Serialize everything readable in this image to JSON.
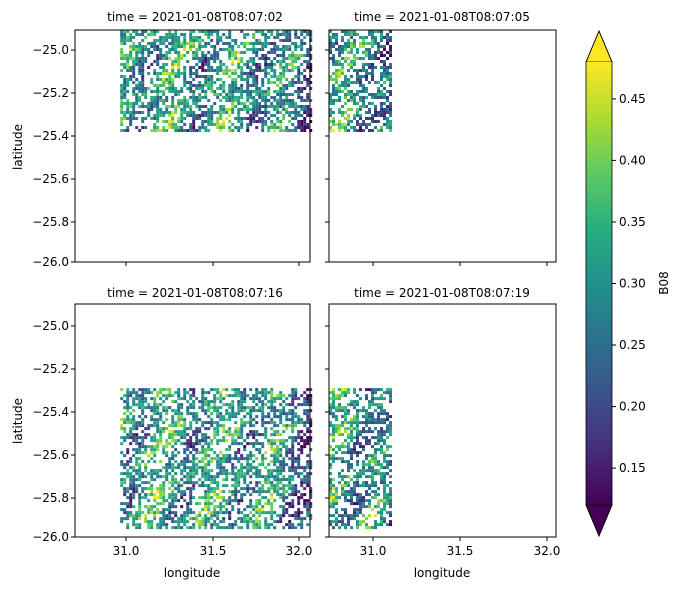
{
  "chart_data": {
    "type": "heatmap",
    "colormap": "viridis",
    "colorbar": {
      "label": "B08",
      "range": [
        0.12,
        0.48
      ],
      "extend": "both",
      "ticks": [
        "0.15",
        "0.20",
        "0.25",
        "0.30",
        "0.35",
        "0.40",
        "0.45"
      ]
    },
    "xlabel": "longitude",
    "ylabel": "latitude",
    "xlim": [
      30.75,
      32.05
    ],
    "ylim": [
      -26.0,
      -24.92
    ],
    "xticks": [
      "31.0",
      "31.5",
      "32.0"
    ],
    "yticks": [
      "−25.0",
      "−25.2",
      "−25.4",
      "−25.6",
      "−25.8",
      "−26.0"
    ],
    "panels": [
      {
        "title": "time = 2021-01-08T08:07:02",
        "extent": {
          "lon": [
            31.0,
            32.05
          ],
          "lat": [
            -25.39,
            -24.92
          ]
        }
      },
      {
        "title": "time = 2021-01-08T08:07:05",
        "extent": {
          "lon": [
            30.75,
            31.1
          ],
          "lat": [
            -25.39,
            -24.92
          ]
        }
      },
      {
        "title": "time = 2021-01-08T08:07:16",
        "extent": {
          "lon": [
            31.0,
            32.05
          ],
          "lat": [
            -25.95,
            -25.31
          ]
        }
      },
      {
        "title": "time = 2021-01-08T08:07:19",
        "extent": {
          "lon": [
            30.75,
            31.1
          ],
          "lat": [
            -25.95,
            -25.31
          ]
        }
      }
    ]
  }
}
